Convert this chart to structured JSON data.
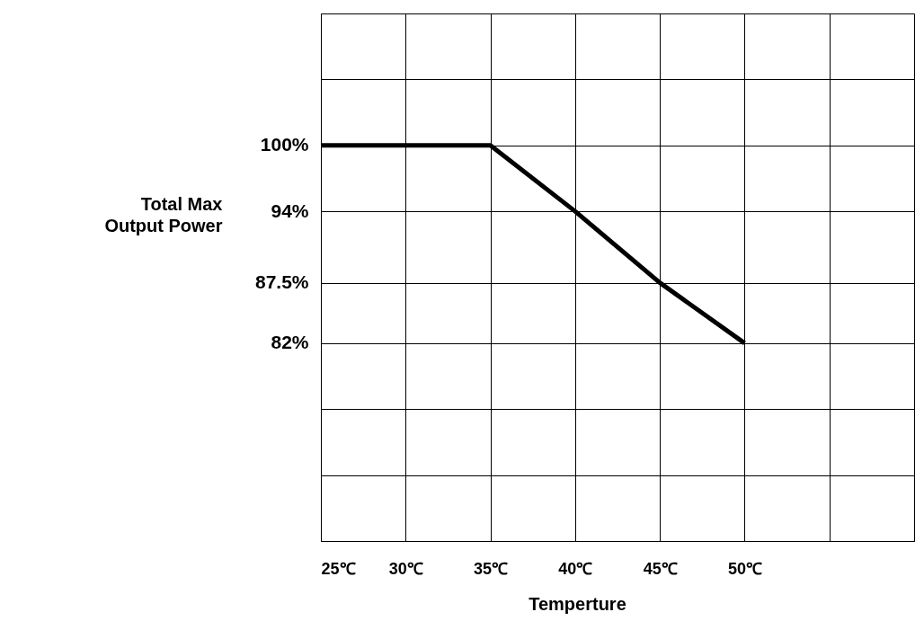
{
  "chart_data": {
    "type": "line",
    "xlabel": "Temperture",
    "ylabel": "Total Max Output Power",
    "x": [
      25,
      35,
      40,
      45,
      50
    ],
    "series": [
      {
        "color": "#000000",
        "values": [
          100,
          100,
          94,
          87.5,
          82
        ]
      }
    ],
    "xlim": [
      25,
      60
    ],
    "xticks": [
      {
        "value": 25,
        "label": "25℃"
      },
      {
        "value": 30,
        "label": "30℃"
      },
      {
        "value": 35,
        "label": "35℃"
      },
      {
        "value": 40,
        "label": "40℃"
      },
      {
        "value": 45,
        "label": "45℃"
      },
      {
        "value": 50,
        "label": "50℃"
      },
      {
        "value": 55,
        "label": null
      },
      {
        "value": 60,
        "label": null
      }
    ],
    "ylim": [
      64,
      112
    ],
    "yticks": [
      {
        "value": 64,
        "label": null
      },
      {
        "value": 70,
        "label": null
      },
      {
        "value": 76,
        "label": null
      },
      {
        "value": 82,
        "label": "82%"
      },
      {
        "value": 87.5,
        "label": "87.5%"
      },
      {
        "value": 94,
        "label": "94%"
      },
      {
        "value": 100,
        "label": "100%"
      },
      {
        "value": 106,
        "label": null
      },
      {
        "value": 112,
        "label": null
      }
    ],
    "grid": true,
    "marker": "none",
    "line_style": "solid"
  }
}
